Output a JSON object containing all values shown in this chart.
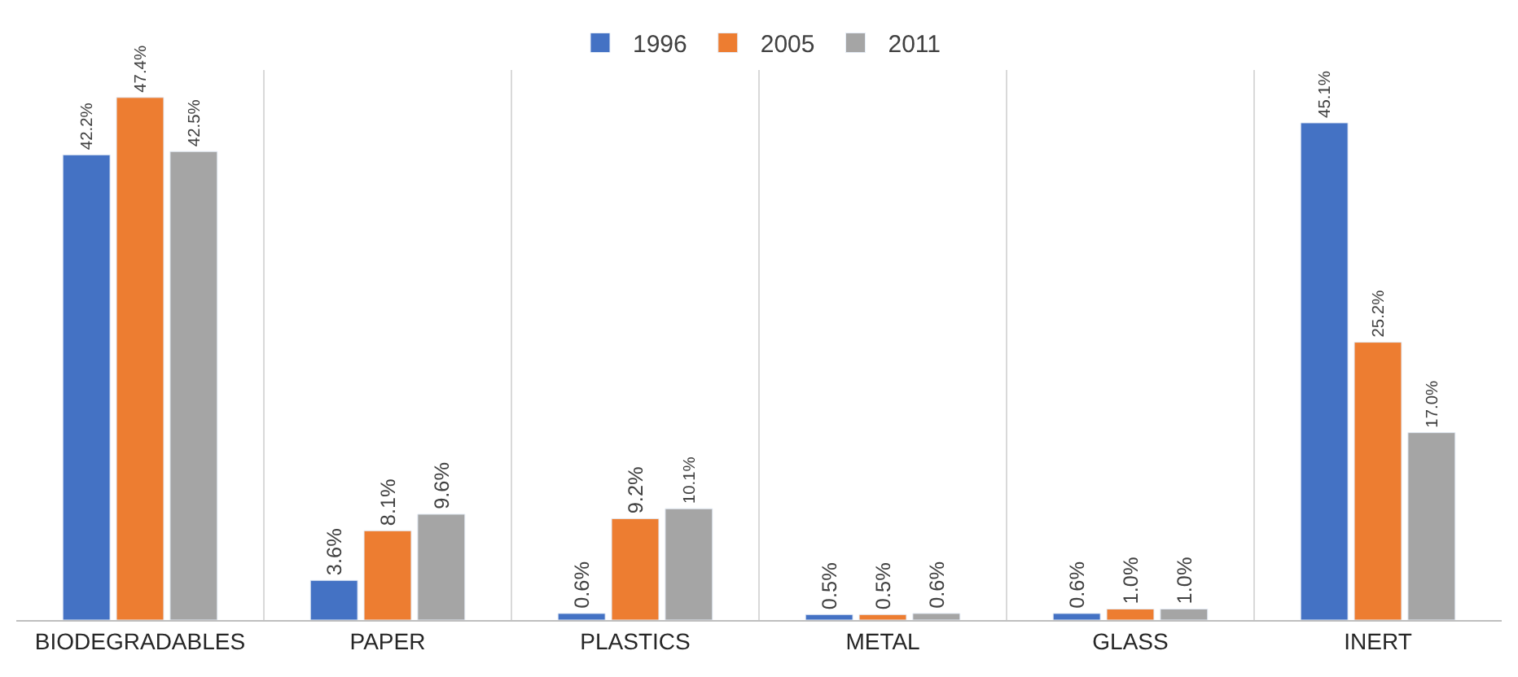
{
  "chart_data": {
    "type": "bar",
    "categories": [
      "BIODEGRADABLES",
      "PAPER",
      "PLASTICS",
      "METAL",
      "GLASS",
      "INERT"
    ],
    "series": [
      {
        "name": "1996",
        "color": "#4472c4",
        "values": [
          42.2,
          3.6,
          0.6,
          0.5,
          0.6,
          45.1
        ],
        "value_labels": [
          "42.2%",
          "3.6%",
          "0.6%",
          "0.5%",
          "0.6%",
          "45.1%"
        ]
      },
      {
        "name": "2005",
        "color": "#ed7d31",
        "values": [
          47.4,
          8.1,
          9.2,
          0.5,
          1.0,
          25.2
        ],
        "value_labels": [
          "47.4%",
          "8.1%",
          "9.2%",
          "0.5%",
          "1.0%",
          "25.2%"
        ]
      },
      {
        "name": "2011",
        "color": "#a5a5a5",
        "values": [
          42.5,
          9.6,
          10.1,
          0.6,
          1.0,
          17.0
        ],
        "value_labels": [
          "42.5%",
          "9.6%",
          "10.1%",
          "0.6%",
          "1.0%",
          "17.0%"
        ]
      }
    ],
    "grid": "x",
    "legend": "top",
    "tick_labels": "x"
  }
}
